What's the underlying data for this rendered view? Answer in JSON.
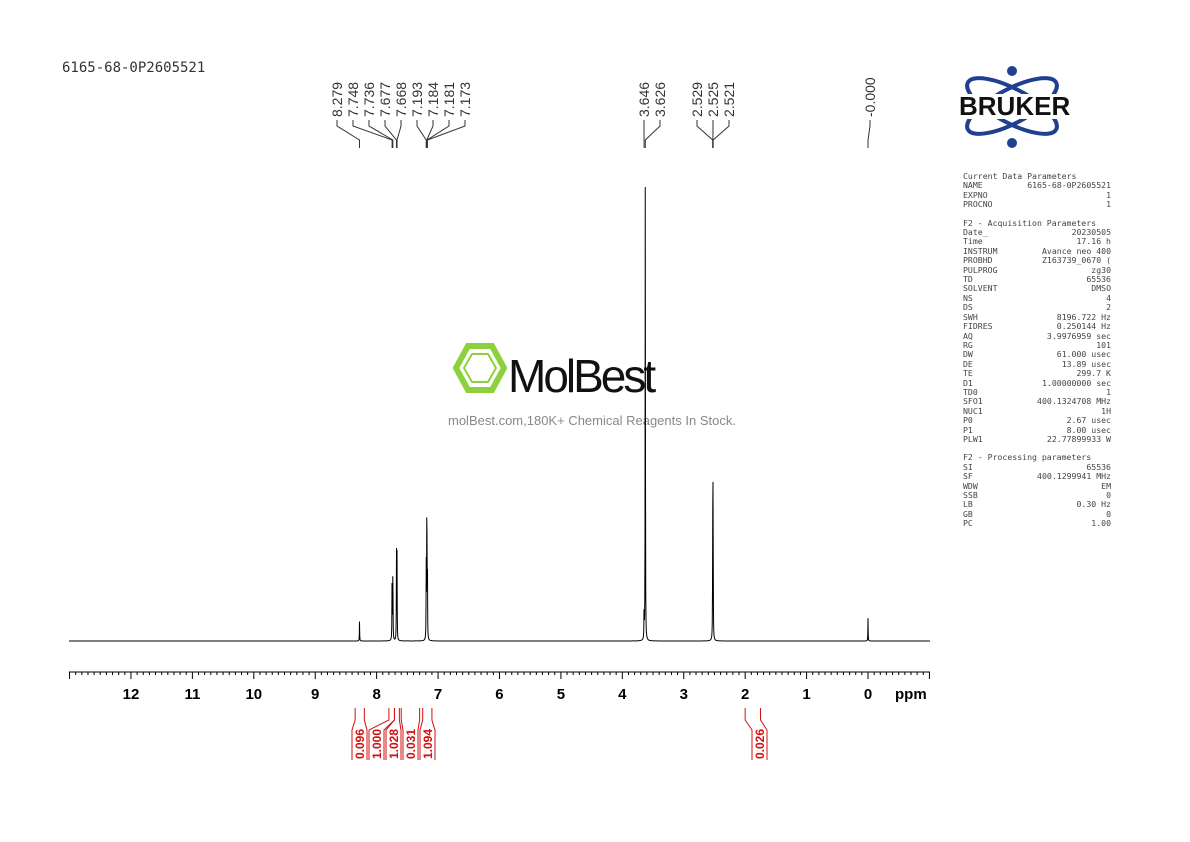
{
  "sample_name": "6165-68-0P2605521",
  "watermark": {
    "brand": "MolBest",
    "tagline": "molBest.com,180K+ Chemical Reagents In Stock."
  },
  "logo": {
    "text": "BRUKER",
    "color": "#1f3f8f"
  },
  "parameters": {
    "sections": [
      {
        "title": "Current Data Parameters",
        "rows": [
          [
            "NAME",
            "6165-68-0P2605521"
          ],
          [
            "EXPNO",
            "1"
          ],
          [
            "PROCNO",
            "1"
          ]
        ]
      },
      {
        "title": "F2 - Acquisition Parameters",
        "rows": [
          [
            "Date_",
            "20230505"
          ],
          [
            "Time",
            "17.16 h"
          ],
          [
            "INSTRUM",
            "Avance neo 400"
          ],
          [
            "PROBHD",
            "Z163739_0670 ("
          ],
          [
            "PULPROG",
            "zg30"
          ],
          [
            "TD",
            "65536"
          ],
          [
            "SOLVENT",
            "DMSO"
          ],
          [
            "NS",
            "4"
          ],
          [
            "DS",
            "2"
          ],
          [
            "SWH",
            "8196.722 Hz"
          ],
          [
            "FIDRES",
            "0.250144 Hz"
          ],
          [
            "AQ",
            "3.9976959 sec"
          ],
          [
            "RG",
            "101"
          ],
          [
            "DW",
            "61.000 usec"
          ],
          [
            "DE",
            "13.89 usec"
          ],
          [
            "TE",
            "299.7 K"
          ],
          [
            "D1",
            "1.00000000 sec"
          ],
          [
            "TD0",
            "1"
          ],
          [
            "SFO1",
            "400.1324708 MHz"
          ],
          [
            "NUC1",
            "1H"
          ],
          [
            "P0",
            "2.67 usec"
          ],
          [
            "P1",
            "8.00 usec"
          ],
          [
            "PLW1",
            "22.77899933 W"
          ]
        ]
      },
      {
        "title": "F2 - Processing parameters",
        "rows": [
          [
            "SI",
            "65536"
          ],
          [
            "SF",
            "400.1299941 MHz"
          ],
          [
            "WDW",
            "EM"
          ],
          [
            "SSB",
            "0"
          ],
          [
            "LB",
            "0.30 Hz"
          ],
          [
            "GB",
            "0"
          ],
          [
            "PC",
            "1.00"
          ]
        ]
      }
    ]
  },
  "chart_data": {
    "type": "line",
    "xlabel": "ppm",
    "xlim": [
      13,
      -1
    ],
    "xticks": [
      "12",
      "11",
      "10",
      "9",
      "8",
      "7",
      "6",
      "5",
      "4",
      "3",
      "2",
      "1",
      "0"
    ],
    "peaks": [
      {
        "ppm": 8.279,
        "rel_height": 0.04
      },
      {
        "ppm": 7.748,
        "rel_height": 0.18
      },
      {
        "ppm": 7.736,
        "rel_height": 0.18
      },
      {
        "ppm": 7.677,
        "rel_height": 0.18
      },
      {
        "ppm": 7.668,
        "rel_height": 0.18
      },
      {
        "ppm": 7.193,
        "rel_height": 0.16
      },
      {
        "ppm": 7.184,
        "rel_height": 0.17
      },
      {
        "ppm": 7.181,
        "rel_height": 0.17
      },
      {
        "ppm": 7.173,
        "rel_height": 0.15
      },
      {
        "ppm": 3.646,
        "rel_height": 0.06
      },
      {
        "ppm": 3.626,
        "rel_height": 1.0
      },
      {
        "ppm": 2.529,
        "rel_height": 0.15
      },
      {
        "ppm": 2.525,
        "rel_height": 0.3
      },
      {
        "ppm": 2.521,
        "rel_height": 0.15
      },
      {
        "ppm": 0.0,
        "rel_height": 0.047
      }
    ],
    "peak_labels": [
      {
        "group": [
          8.279
        ],
        "labels": [
          "8.279"
        ]
      },
      {
        "group": [
          7.748,
          7.736,
          7.677,
          7.668
        ],
        "labels": [
          "7.748",
          "7.736",
          "7.677",
          "7.668"
        ]
      },
      {
        "group": [
          7.193,
          7.184,
          7.181,
          7.173
        ],
        "labels": [
          "7.193",
          "7.184",
          "7.181",
          "7.173"
        ]
      },
      {
        "group": [
          3.646,
          3.626
        ],
        "labels": [
          "3.646",
          "3.626"
        ]
      },
      {
        "group": [
          2.529,
          2.525,
          2.521
        ],
        "labels": [
          "2.529",
          "2.525",
          "2.521"
        ]
      },
      {
        "group": [
          0.0
        ],
        "labels": [
          "-0.000"
        ]
      }
    ],
    "integrals": [
      {
        "from": 8.35,
        "to": 8.2,
        "value": "0.096"
      },
      {
        "from": 7.8,
        "to": 7.71,
        "value": "1.000"
      },
      {
        "from": 7.71,
        "to": 7.63,
        "value": "1.028"
      },
      {
        "from": 7.6,
        "to": 7.3,
        "value": "0.031"
      },
      {
        "from": 7.25,
        "to": 7.1,
        "value": "1.094"
      },
      {
        "from": 2.0,
        "to": 1.75,
        "value": "0.026"
      }
    ],
    "integral_color": "#d01010"
  }
}
